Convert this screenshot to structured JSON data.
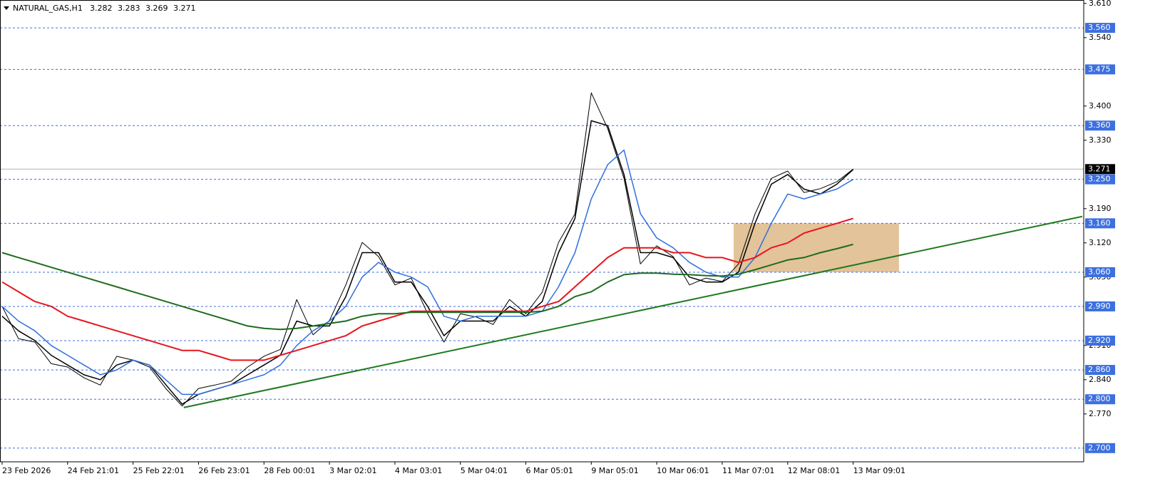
{
  "chart_data": {
    "type": "line",
    "title": "NATURAL_GAS,H1",
    "last_bar": {
      "open": 3.282,
      "high": 3.283,
      "low": 3.269,
      "close": 3.271
    },
    "categories": [
      "23 Feb 2026",
      null,
      null,
      null,
      "24 Feb 21:01",
      null,
      null,
      null,
      "25 Feb 22:01",
      null,
      null,
      null,
      "26 Feb 23:01",
      null,
      null,
      null,
      "28 Feb 00:01",
      null,
      null,
      null,
      "3 Mar 02:01",
      null,
      null,
      null,
      "4 Mar 03:01",
      null,
      null,
      null,
      "5 Mar 04:01",
      null,
      null,
      null,
      "6 Mar 05:01",
      null,
      null,
      null,
      "9 Mar 05:01",
      null,
      null,
      null,
      "10 Mar 06:01",
      null,
      null,
      null,
      "11 Mar 07:01",
      null,
      null,
      null,
      "12 Mar 08:01",
      null,
      null,
      null,
      "13 Mar 09:01"
    ],
    "xlim": [
      -0.13,
      66.09
    ],
    "ylim": [
      2.672,
      3.617
    ],
    "yticks": [
      {
        "value": 3.61,
        "label": "3.610"
      },
      {
        "value": 3.54,
        "label": "3.540"
      },
      {
        "value": 3.4,
        "label": "3.400"
      },
      {
        "value": 3.33,
        "label": "3.330"
      },
      {
        "value": 3.19,
        "label": "3.190"
      },
      {
        "value": 3.12,
        "label": "3.120"
      },
      {
        "value": 3.05,
        "label": "3.050"
      },
      {
        "value": 2.91,
        "label": "2.910"
      },
      {
        "value": 2.84,
        "label": "2.840"
      },
      {
        "value": 2.77,
        "label": "2.770"
      }
    ],
    "series": [
      {
        "color": "#000000",
        "width": 1,
        "values": [
          2.99,
          2.924,
          2.917,
          2.873,
          2.866,
          2.844,
          2.829,
          2.888,
          2.88,
          2.866,
          2.822,
          2.786,
          2.822,
          2.829,
          2.837,
          2.866,
          2.888,
          2.902,
          3.004,
          2.932,
          2.961,
          3.034,
          3.121,
          3.092,
          3.034,
          3.048,
          2.975,
          2.917,
          2.975,
          2.968,
          2.953,
          3.004,
          2.975,
          3.019,
          3.121,
          3.179,
          3.427,
          3.354,
          3.252,
          3.077,
          3.114,
          3.092,
          3.034,
          3.048,
          3.041,
          3.077,
          3.179,
          3.252,
          3.267,
          3.223,
          3.231,
          3.245,
          3.271
        ]
      },
      {
        "color": "#000000",
        "width": 1.5,
        "values": [
          2.97,
          2.94,
          2.92,
          2.89,
          2.87,
          2.85,
          2.84,
          2.87,
          2.88,
          2.87,
          2.83,
          2.79,
          2.81,
          2.82,
          2.83,
          2.85,
          2.87,
          2.89,
          2.96,
          2.95,
          2.95,
          3.01,
          3.1,
          3.1,
          3.04,
          3.04,
          2.99,
          2.93,
          2.96,
          2.96,
          2.96,
          2.99,
          2.97,
          3.0,
          3.1,
          3.17,
          3.37,
          3.36,
          3.26,
          3.1,
          3.1,
          3.09,
          3.05,
          3.04,
          3.04,
          3.06,
          3.16,
          3.24,
          3.26,
          3.23,
          3.22,
          3.24,
          3.27
        ]
      },
      {
        "color": "#2f6fe0",
        "width": 1.5,
        "values": [
          2.99,
          2.96,
          2.94,
          2.91,
          2.89,
          2.87,
          2.85,
          2.86,
          2.88,
          2.87,
          2.84,
          2.81,
          2.81,
          2.82,
          2.83,
          2.84,
          2.85,
          2.87,
          2.91,
          2.94,
          2.96,
          2.99,
          3.05,
          3.08,
          3.06,
          3.05,
          3.03,
          2.97,
          2.96,
          2.97,
          2.97,
          2.97,
          2.97,
          2.98,
          3.03,
          3.1,
          3.21,
          3.28,
          3.31,
          3.18,
          3.13,
          3.11,
          3.08,
          3.06,
          3.05,
          3.05,
          3.09,
          3.16,
          3.22,
          3.21,
          3.22,
          3.23,
          3.25
        ]
      },
      {
        "color": "#e8141c",
        "width": 2,
        "values": [
          3.04,
          3.02,
          3.0,
          2.99,
          2.97,
          2.96,
          2.95,
          2.94,
          2.93,
          2.92,
          2.91,
          2.9,
          2.9,
          2.89,
          2.88,
          2.88,
          2.88,
          2.89,
          2.9,
          2.91,
          2.92,
          2.93,
          2.95,
          2.96,
          2.97,
          2.98,
          2.98,
          2.98,
          2.98,
          2.98,
          2.98,
          2.98,
          2.98,
          2.99,
          3.0,
          3.03,
          3.06,
          3.09,
          3.11,
          3.11,
          3.11,
          3.1,
          3.1,
          3.09,
          3.09,
          3.08,
          3.09,
          3.11,
          3.12,
          3.14,
          3.15,
          3.16,
          3.17
        ]
      },
      {
        "color": "#1e6b1e",
        "width": 2,
        "values": [
          3.1,
          3.09,
          3.08,
          3.07,
          3.06,
          3.05,
          3.04,
          3.03,
          3.02,
          3.01,
          3.0,
          2.99,
          2.98,
          2.97,
          2.96,
          2.95,
          2.945,
          2.943,
          2.945,
          2.95,
          2.955,
          2.96,
          2.97,
          2.975,
          2.975,
          2.978,
          2.978,
          2.978,
          2.978,
          2.978,
          2.978,
          2.978,
          2.978,
          2.98,
          2.99,
          3.01,
          3.02,
          3.04,
          3.055,
          3.058,
          3.058,
          3.056,
          3.055,
          3.053,
          3.052,
          3.056,
          3.065,
          3.075,
          3.085,
          3.09,
          3.1,
          3.108,
          3.117
        ]
      }
    ],
    "levels": [
      {
        "value": 3.56,
        "label": "3.560"
      },
      {
        "value": 3.475,
        "label": "3.475"
      },
      {
        "value": 3.36,
        "label": "3.360"
      },
      {
        "value": 3.25,
        "label": "3.250"
      },
      {
        "value": 3.16,
        "label": "3.160"
      },
      {
        "value": 3.06,
        "label": "3.060"
      },
      {
        "value": 2.99,
        "label": "2.990"
      },
      {
        "value": 2.92,
        "label": "2.920"
      },
      {
        "value": 2.86,
        "label": "2.860"
      },
      {
        "value": 2.8,
        "label": "2.800"
      },
      {
        "value": 2.7,
        "label": "2.700"
      }
    ],
    "level_color": "#3c6fe0",
    "current_price": 3.271,
    "trendline": {
      "x": [
        11.1,
        66.0
      ],
      "y": [
        2.783,
        3.174
      ],
      "color": "#1e7a1e"
    },
    "zone": {
      "x": [
        44.7,
        54.8
      ],
      "y": [
        3.06,
        3.16
      ],
      "color": "#deb887"
    }
  }
}
